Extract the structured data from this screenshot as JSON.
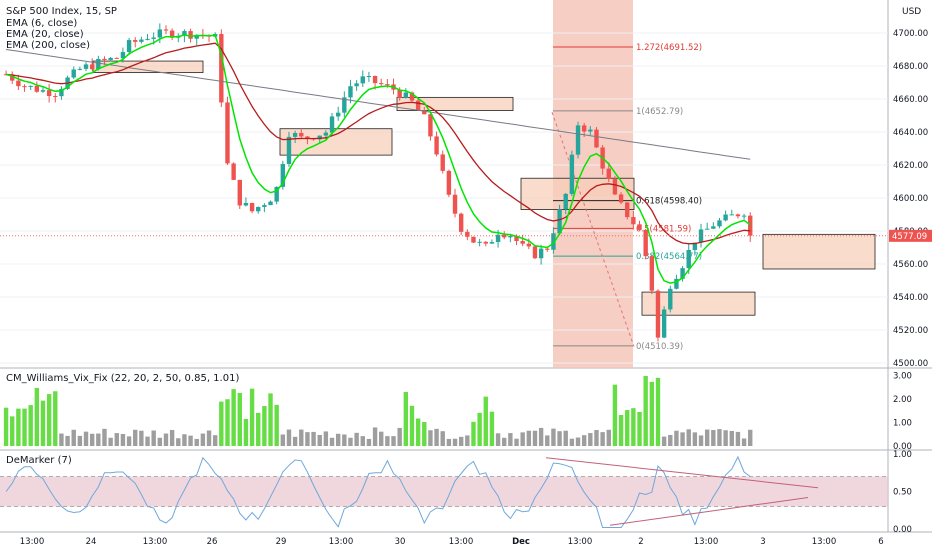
{
  "header": {
    "symbol": "S&P 500 Index, 15, SP",
    "ema_lines": [
      "EMA (6, close)",
      "EMA (20, close)",
      "EMA (200, close)"
    ],
    "currency": "USD"
  },
  "price_axis": {
    "ticks": [
      "4700.00",
      "4680.00",
      "4660.00",
      "4640.00",
      "4620.00",
      "4600.00",
      "4580.00",
      "4560.00",
      "4540.00",
      "4520.00",
      "4500.00"
    ]
  },
  "last_price": "4577.09",
  "fib_levels": [
    {
      "label": "1.272(4691.52)",
      "value": 4691.52,
      "color": "#e53935"
    },
    {
      "label": "1(4652.79)",
      "value": 4652.79,
      "color": "#888888"
    },
    {
      "label": "0.618(4598.40)",
      "value": 4598.4,
      "color": "#222222"
    },
    {
      "label": "0.5(4581.59)",
      "value": 4581.59,
      "color": "#e53935"
    },
    {
      "label": "0.382(4564.77)",
      "value": 4564.77,
      "color": "#26a69a"
    },
    {
      "label": "0(4510.39)",
      "value": 4510.39,
      "color": "#888888"
    }
  ],
  "vix_panel": {
    "title": "CM_Williams_Vix_Fix (22, 20, 2, 50, 0.85, 1.01)",
    "ticks": [
      "3.00",
      "2.00",
      "1.00",
      "0.00"
    ]
  },
  "demarker_panel": {
    "title": "DeMarker (7)",
    "ticks": [
      "1.00",
      "0.50",
      "0.00"
    ]
  },
  "time_axis": {
    "labels": [
      "13:00",
      "24",
      "13:00",
      "26",
      "29",
      "13:00",
      "30",
      "13:00",
      "Dec",
      "13:00",
      "2",
      "13:00",
      "3",
      "13:00",
      "6"
    ]
  },
  "colors": {
    "up": "#26a69a",
    "down": "#ef5350",
    "ema6": "#00e600",
    "ema20": "#b71c1c",
    "ema200": "#787b86",
    "vix_high": "#66dd44",
    "vix_low": "#9e9e9e",
    "demarker": "#6fa8dc"
  },
  "chart_data": {
    "type": "candlestick",
    "title": "S&P 500 Index, 15, SP",
    "y_range": [
      4497,
      4720
    ],
    "candles": [],
    "ema6": [],
    "ema20": [],
    "ema200": [],
    "vix_fix": [],
    "demarker": []
  }
}
